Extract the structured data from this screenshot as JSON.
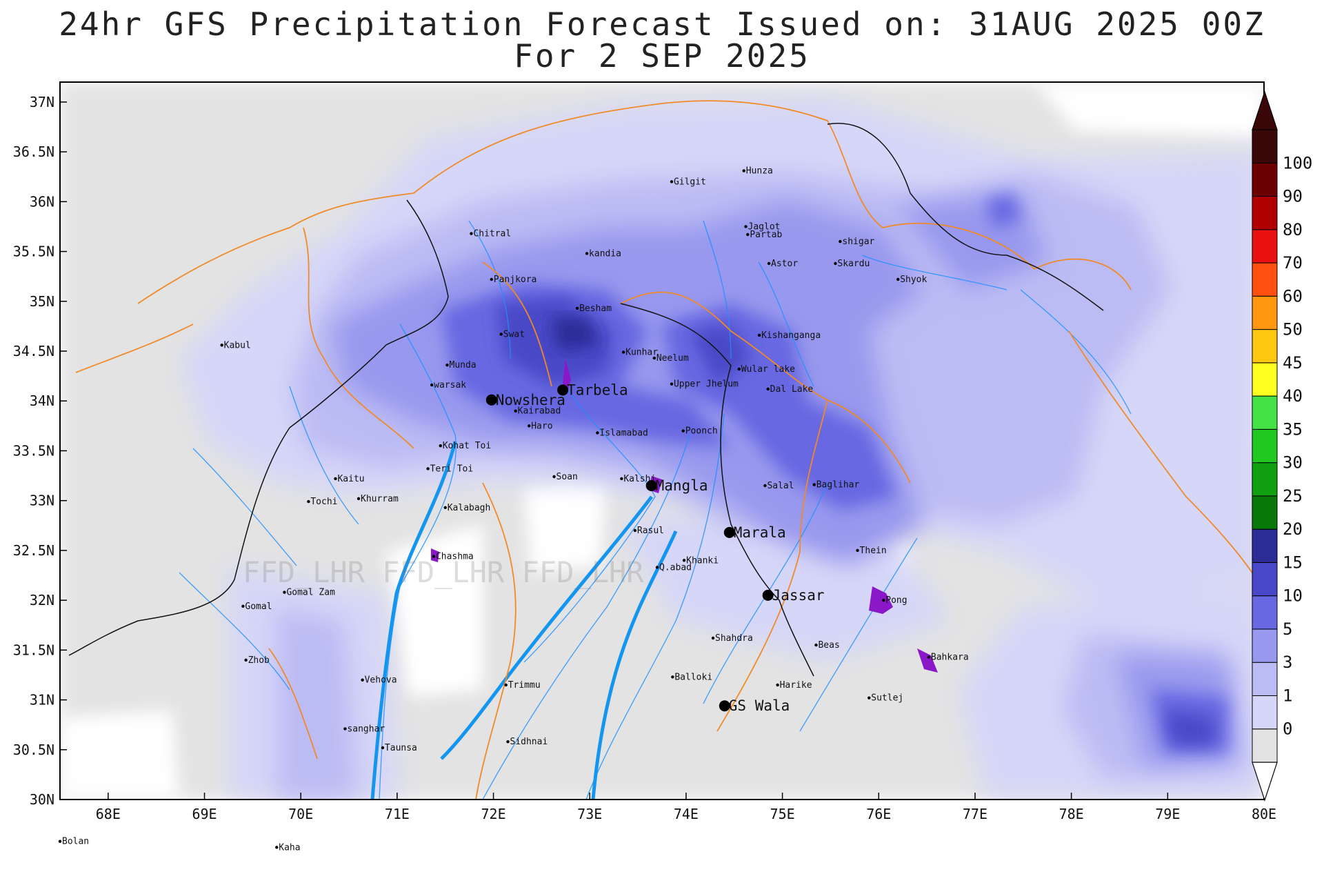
{
  "title": {
    "line1": "24hr GFS Precipitation Forecast Issued on:  31AUG 2025 00Z",
    "line2": "For 2 SEP 2025"
  },
  "watermark": "FFD_LHR FFD_LHR FFD_LHR",
  "map": {
    "lon_range": [
      67.5,
      80
    ],
    "lat_range": [
      30,
      37.2
    ],
    "x_ticks": [
      {
        "lon": 68,
        "label": "68E"
      },
      {
        "lon": 69,
        "label": "69E"
      },
      {
        "lon": 70,
        "label": "70E"
      },
      {
        "lon": 71,
        "label": "71E"
      },
      {
        "lon": 72,
        "label": "72E"
      },
      {
        "lon": 73,
        "label": "73E"
      },
      {
        "lon": 74,
        "label": "74E"
      },
      {
        "lon": 75,
        "label": "75E"
      },
      {
        "lon": 76,
        "label": "76E"
      },
      {
        "lon": 77,
        "label": "77E"
      },
      {
        "lon": 78,
        "label": "78E"
      },
      {
        "lon": 79,
        "label": "79E"
      },
      {
        "lon": 80,
        "label": "80E"
      }
    ],
    "y_ticks": [
      {
        "lat": 30,
        "label": "30N"
      },
      {
        "lat": 30.5,
        "label": "30.5N"
      },
      {
        "lat": 31,
        "label": "31N"
      },
      {
        "lat": 31.5,
        "label": "31.5N"
      },
      {
        "lat": 32,
        "label": "32N"
      },
      {
        "lat": 32.5,
        "label": "32.5N"
      },
      {
        "lat": 33,
        "label": "33N"
      },
      {
        "lat": 33.5,
        "label": "33.5N"
      },
      {
        "lat": 34,
        "label": "34N"
      },
      {
        "lat": 34.5,
        "label": "34.5N"
      },
      {
        "lat": 35,
        "label": "35N"
      },
      {
        "lat": 35.5,
        "label": "35.5N"
      },
      {
        "lat": 36,
        "label": "36N"
      },
      {
        "lat": 36.5,
        "label": "36.5N"
      },
      {
        "lat": 37,
        "label": "37N"
      }
    ]
  },
  "legend": {
    "ticks": [
      "0",
      "1",
      "3",
      "5",
      "10",
      "15",
      "20",
      "25",
      "30",
      "35",
      "40",
      "45",
      "50",
      "60",
      "70",
      "80",
      "90",
      "100"
    ],
    "colors": [
      "#e3e3e3",
      "#d6d6f8",
      "#bcbcf4",
      "#9898ee",
      "#6868e2",
      "#4848c8",
      "#2c2c96",
      "#087808",
      "#10a010",
      "#20c820",
      "#44e244",
      "#ffff20",
      "#ffc810",
      "#ff9810",
      "#ff5010",
      "#e81010",
      "#b00000",
      "#6a0000",
      "#3a0808"
    ],
    "over_color": "#3a0808",
    "under_color": "#ffffff"
  },
  "places": [
    {
      "name": "Hunza",
      "lon": 74.6,
      "lat": 36.31
    },
    {
      "name": "Gilgit",
      "lon": 73.85,
      "lat": 36.2
    },
    {
      "name": "Chitral",
      "lon": 71.77,
      "lat": 35.68
    },
    {
      "name": "Jaglot",
      "lon": 74.62,
      "lat": 35.75
    },
    {
      "name": "Partab",
      "lon": 74.64,
      "lat": 35.67
    },
    {
      "name": "shigar",
      "lon": 75.6,
      "lat": 35.6
    },
    {
      "name": "kandia",
      "lon": 72.97,
      "lat": 35.48
    },
    {
      "name": "Astor",
      "lon": 74.86,
      "lat": 35.38
    },
    {
      "name": "Skardu",
      "lon": 75.55,
      "lat": 35.38
    },
    {
      "name": "Panjkora",
      "lon": 71.98,
      "lat": 35.22
    },
    {
      "name": "Shyok",
      "lon": 76.2,
      "lat": 35.22
    },
    {
      "name": "Besham",
      "lon": 72.87,
      "lat": 34.93
    },
    {
      "name": "Swat",
      "lon": 72.08,
      "lat": 34.67
    },
    {
      "name": "Kishanganga",
      "lon": 74.76,
      "lat": 34.66
    },
    {
      "name": "Kabul",
      "lon": 69.18,
      "lat": 34.56
    },
    {
      "name": "Kunhar",
      "lon": 73.35,
      "lat": 34.49
    },
    {
      "name": "Neelum",
      "lon": 73.67,
      "lat": 34.43
    },
    {
      "name": "Munda",
      "lon": 71.52,
      "lat": 34.36
    },
    {
      "name": "Wular lake",
      "lon": 74.55,
      "lat": 34.32
    },
    {
      "name": "Upper Jhelum",
      "lon": 73.85,
      "lat": 34.17
    },
    {
      "name": "warsak",
      "lon": 71.36,
      "lat": 34.16
    },
    {
      "name": "Dal Lake",
      "lon": 74.85,
      "lat": 34.12
    },
    {
      "name": "Kairabad",
      "lon": 72.23,
      "lat": 33.9
    },
    {
      "name": "Haro",
      "lon": 72.37,
      "lat": 33.75
    },
    {
      "name": "Islamabad",
      "lon": 73.08,
      "lat": 33.68
    },
    {
      "name": "Poonch",
      "lon": 73.97,
      "lat": 33.7
    },
    {
      "name": "Kohat Toi",
      "lon": 71.45,
      "lat": 33.55
    },
    {
      "name": "Teri Toi",
      "lon": 71.32,
      "lat": 33.32
    },
    {
      "name": "Soan",
      "lon": 72.63,
      "lat": 33.24
    },
    {
      "name": "Kalshi",
      "lon": 73.33,
      "lat": 33.22
    },
    {
      "name": "Kaitu",
      "lon": 70.36,
      "lat": 33.22
    },
    {
      "name": "Salal",
      "lon": 74.82,
      "lat": 33.15
    },
    {
      "name": "Baglihar",
      "lon": 75.33,
      "lat": 33.16
    },
    {
      "name": "Tochi",
      "lon": 70.08,
      "lat": 32.99
    },
    {
      "name": "Khurram",
      "lon": 70.6,
      "lat": 33.02
    },
    {
      "name": "Kalabagh",
      "lon": 71.5,
      "lat": 32.93
    },
    {
      "name": "Rasul",
      "lon": 73.47,
      "lat": 32.7
    },
    {
      "name": "Thein",
      "lon": 75.78,
      "lat": 32.5
    },
    {
      "name": "Chashma",
      "lon": 71.38,
      "lat": 32.44
    },
    {
      "name": "Khanki",
      "lon": 73.98,
      "lat": 32.4
    },
    {
      "name": "Q.abad",
      "lon": 73.7,
      "lat": 32.33
    },
    {
      "name": "Gomal Zam",
      "lon": 69.83,
      "lat": 32.08
    },
    {
      "name": "Pong",
      "lon": 76.05,
      "lat": 32.0
    },
    {
      "name": "Gomal",
      "lon": 69.4,
      "lat": 31.94
    },
    {
      "name": "Shahdra",
      "lon": 74.28,
      "lat": 31.62
    },
    {
      "name": "Beas",
      "lon": 75.35,
      "lat": 31.55
    },
    {
      "name": "Zhob",
      "lon": 69.43,
      "lat": 31.4
    },
    {
      "name": "Bahkara",
      "lon": 76.52,
      "lat": 31.43
    },
    {
      "name": "Trimmu",
      "lon": 72.13,
      "lat": 31.15
    },
    {
      "name": "Vehova",
      "lon": 70.64,
      "lat": 31.2
    },
    {
      "name": "Balloki",
      "lon": 73.86,
      "lat": 31.23
    },
    {
      "name": "Harike",
      "lon": 74.95,
      "lat": 31.15
    },
    {
      "name": "Sutlej",
      "lon": 75.9,
      "lat": 31.02
    },
    {
      "name": "sanghar",
      "lon": 70.46,
      "lat": 30.71
    },
    {
      "name": "Sidhnai",
      "lon": 72.15,
      "lat": 30.58
    },
    {
      "name": "Taunsa",
      "lon": 70.85,
      "lat": 30.52
    },
    {
      "name": "Bolan",
      "lon": 67.5,
      "lat": 29.58
    },
    {
      "name": "Kaha",
      "lon": 69.75,
      "lat": 29.52
    }
  ],
  "major_places": [
    {
      "name": "Nowshera",
      "lon": 71.98,
      "lat": 34.01
    },
    {
      "name": "Tarbela",
      "lon": 72.72,
      "lat": 34.11
    },
    {
      "name": "Mangla",
      "lon": 73.64,
      "lat": 33.15
    },
    {
      "name": "Marala",
      "lon": 74.45,
      "lat": 32.68
    },
    {
      "name": "Jassar",
      "lon": 74.85,
      "lat": 32.05
    },
    {
      "name": "GS Wala",
      "lon": 74.4,
      "lat": 30.94
    }
  ]
}
